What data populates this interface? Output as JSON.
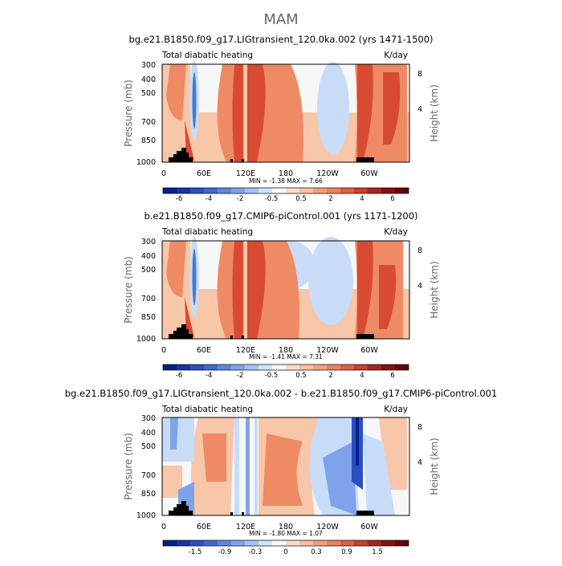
{
  "page_title": "MAM",
  "colors": {
    "dark_blue": "#061f8a",
    "mid_blue": "#4a78d8",
    "light_blue": "#c8dcf8",
    "white": "#f7f7f7",
    "light_orange": "#f8c6a8",
    "orange": "#ee8a64",
    "red": "#d94a32",
    "dark_red": "#7a0a0a",
    "topography": "#000000"
  },
  "chart_data": [
    {
      "type": "heatmap",
      "title": "bg.e21.B1850.f09_g17.LIGtransient_120.0ka.002 (yrs 1471-1500)",
      "subtitle_left": "Total diabatic heating",
      "units": "K/day",
      "ylabel": "Pressure  (mb)",
      "ylabel_right": "Height  (km)",
      "xticks": [
        "0",
        "60E",
        "120E",
        "180",
        "120W",
        "60W"
      ],
      "yticks": [
        "300",
        "400",
        "500",
        "700",
        "850",
        "1000"
      ],
      "yticks_right": [
        "8",
        "4"
      ],
      "minmax": "MIN =   -1.38   MAX =    7.66",
      "colorbar_labels": [
        "-6",
        "-4",
        "-2",
        "-0.5",
        "0.5",
        "2",
        "4",
        "6"
      ]
    },
    {
      "type": "heatmap",
      "title": "b.e21.B1850.f09_g17.CMIP6-piControl.001 (yrs 1171-1200)",
      "subtitle_left": "Total diabatic heating",
      "units": "K/day",
      "ylabel": "Pressure  (mb)",
      "ylabel_right": "Height  (km)",
      "xticks": [
        "0",
        "60E",
        "120E",
        "180",
        "120W",
        "60W"
      ],
      "yticks": [
        "300",
        "400",
        "500",
        "700",
        "850",
        "1000"
      ],
      "yticks_right": [
        "8",
        "4"
      ],
      "minmax": "MIN =   -1.41   MAX =    7.31",
      "colorbar_labels": [
        "-6",
        "-4",
        "-2",
        "-0.5",
        "0.5",
        "2",
        "4",
        "6"
      ]
    },
    {
      "type": "heatmap",
      "title": "bg.e21.B1850.f09_g17.LIGtransient_120.0ka.002 - b.e21.B1850.f09_g17.CMIP6-piControl.001",
      "subtitle_left": "Total diabatic heating",
      "units": "K/day",
      "ylabel": "Pressure  (mb)",
      "ylabel_right": "Height  (km)",
      "xticks": [
        "0",
        "60E",
        "120E",
        "180",
        "120W",
        "60W"
      ],
      "yticks": [
        "300",
        "400",
        "500",
        "700",
        "850",
        "1000"
      ],
      "yticks_right": [
        "8",
        "4"
      ],
      "minmax": "MIN =   -1.80   MAX =    1.07",
      "colorbar_labels": [
        "-1.5",
        "-0.9",
        "-0.3",
        "0",
        "0.3",
        "0.9",
        "1.5"
      ]
    }
  ]
}
